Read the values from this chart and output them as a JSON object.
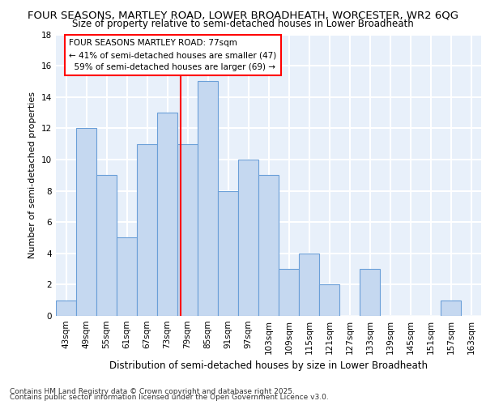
{
  "title1": "FOUR SEASONS, MARTLEY ROAD, LOWER BROADHEATH, WORCESTER, WR2 6QG",
  "title2": "Size of property relative to semi-detached houses in Lower Broadheath",
  "xlabel": "Distribution of semi-detached houses by size in Lower Broadheath",
  "ylabel": "Number of semi-detached properties",
  "categories": [
    "43sqm",
    "49sqm",
    "55sqm",
    "61sqm",
    "67sqm",
    "73sqm",
    "79sqm",
    "85sqm",
    "91sqm",
    "97sqm",
    "103sqm",
    "109sqm",
    "115sqm",
    "121sqm",
    "127sqm",
    "133sqm",
    "139sqm",
    "145sqm",
    "151sqm",
    "157sqm",
    "163sqm"
  ],
  "values": [
    1,
    12,
    9,
    5,
    11,
    13,
    11,
    15,
    8,
    10,
    9,
    3,
    4,
    2,
    0,
    3,
    0,
    0,
    0,
    1,
    0
  ],
  "bar_color": "#c5d8f0",
  "bar_edge_color": "#6a9fd8",
  "ylim": [
    0,
    18
  ],
  "yticks": [
    0,
    2,
    4,
    6,
    8,
    10,
    12,
    14,
    16,
    18
  ],
  "annotation_line1": "FOUR SEASONS MARTLEY ROAD: 77sqm",
  "annotation_line2": "← 41% of semi-detached houses are smaller (47)",
  "annotation_line3": "  59% of semi-detached houses are larger (69) →",
  "red_line_index": 5.667,
  "background_color": "#e8f0fa",
  "grid_color": "#ffffff",
  "footer1": "Contains HM Land Registry data © Crown copyright and database right 2025.",
  "footer2": "Contains public sector information licensed under the Open Government Licence v3.0.",
  "title1_fontsize": 9.5,
  "title2_fontsize": 8.5,
  "axis_fontsize": 7.5,
  "ylabel_fontsize": 8,
  "xlabel_fontsize": 8.5,
  "footer_fontsize": 6.5
}
